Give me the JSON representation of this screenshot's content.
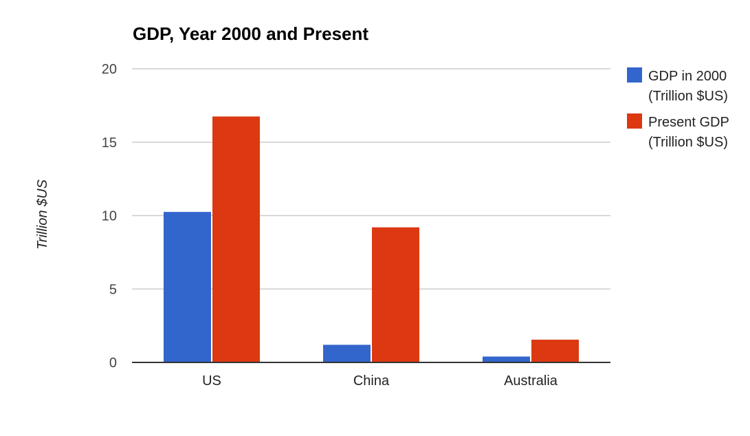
{
  "chart_data": {
    "type": "bar",
    "title": "GDP, Year 2000 and Present",
    "xlabel": "",
    "ylabel": "Trillion $US",
    "categories": [
      "US",
      "China",
      "Australia"
    ],
    "series": [
      {
        "name": "GDP in 2000 (Trillion $US)",
        "legend_lines": [
          "GDP in 2000",
          "(Trillion $US)"
        ],
        "color": "#3366cc",
        "values": [
          10.25,
          1.2,
          0.4
        ]
      },
      {
        "name": "Present GDP (Trillion $US)",
        "legend_lines": [
          "Present GDP",
          "(Trillion $US)"
        ],
        "color": "#dc3912",
        "values": [
          16.75,
          9.2,
          1.55
        ]
      }
    ],
    "ylim": [
      0,
      20
    ],
    "yticks": [
      0,
      5,
      10,
      15,
      20
    ],
    "grid": true,
    "legend_position": "right"
  }
}
